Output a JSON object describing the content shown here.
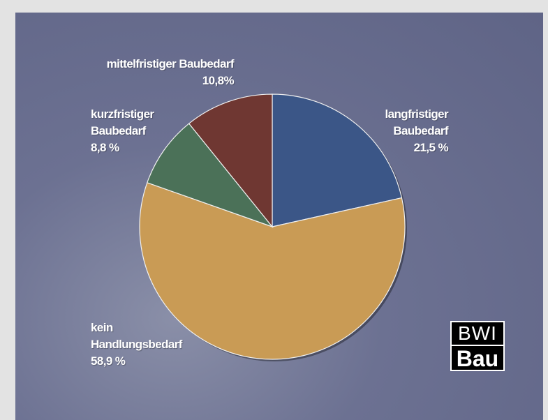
{
  "chart_data": {
    "type": "pie",
    "categories": [
      "langfristiger Baubedarf",
      "kein Handlungsbedarf",
      "kurzfristiger Baubedarf",
      "mittelfristiger Baubedarf"
    ],
    "values": [
      21.5,
      58.9,
      8.8,
      10.8
    ],
    "value_labels": [
      "21,5 %",
      "58,9 %",
      "8,8 %",
      "10,8%"
    ],
    "colors": [
      "#3b5687",
      "#c99b55",
      "#4b7158",
      "#6f3732"
    ]
  },
  "logo": {
    "line1": "BWI",
    "line2": "Bau"
  }
}
